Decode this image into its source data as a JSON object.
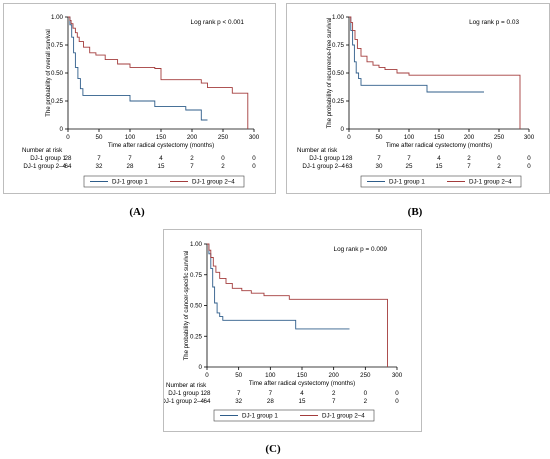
{
  "captions": {
    "a": "(A)",
    "b": "(B)",
    "c": "(C)"
  },
  "colors": {
    "group1": "#2f5d8a",
    "group2_4": "#a33c3c",
    "axis": "#000000",
    "frame": "#bdbdbd"
  },
  "chart_data": [
    {
      "type": "line",
      "subtype": "kaplan-meier",
      "panel": "A",
      "ylabel": "The probability of overall survival",
      "xlabel": "Time after radical cystectomy (months)",
      "annotation": "Log rank p < 0.001",
      "xlim": [
        0,
        300
      ],
      "ylim": [
        0,
        1
      ],
      "xticks": [
        "0",
        "50",
        "100",
        "150",
        "200",
        "250",
        "300"
      ],
      "yticks": [
        "0",
        "0.25",
        "0.50",
        "0.75",
        "1.00"
      ],
      "legend": {
        "placement": "bottom",
        "entries": [
          "DJ-1 group 1",
          "DJ-1 group 2–4"
        ]
      },
      "series": [
        {
          "name": "DJ-1 group 1",
          "color": "#2f5d8a",
          "x": [
            0,
            3,
            6,
            9,
            12,
            16,
            20,
            24,
            30,
            100,
            140,
            190,
            215,
            225
          ],
          "y": [
            1.0,
            0.93,
            0.82,
            0.68,
            0.55,
            0.45,
            0.36,
            0.3,
            0.3,
            0.25,
            0.2,
            0.17,
            0.08,
            0.08
          ]
        },
        {
          "name": "DJ-1 group 2–4",
          "color": "#a33c3c",
          "x": [
            0,
            3,
            5,
            8,
            12,
            15,
            18,
            25,
            35,
            45,
            60,
            80,
            100,
            125,
            140,
            150,
            215,
            225,
            245,
            265,
            290,
            290
          ],
          "y": [
            1.0,
            0.97,
            0.94,
            0.9,
            0.86,
            0.82,
            0.78,
            0.73,
            0.68,
            0.66,
            0.62,
            0.58,
            0.55,
            0.55,
            0.54,
            0.44,
            0.41,
            0.37,
            0.37,
            0.32,
            0.32,
            0.0
          ]
        }
      ],
      "risk_table": {
        "title": "Number at risk",
        "times": [
          0,
          50,
          100,
          150,
          200,
          250,
          300
        ],
        "rows": [
          {
            "label": "DJ-1 group 1",
            "values": [
              "28",
              "7",
              "7",
              "4",
              "2",
              "0",
              "0"
            ]
          },
          {
            "label": "DJ-1 group 2–4",
            "values": [
              "64",
              "32",
              "28",
              "15",
              "7",
              "2",
              "0"
            ]
          }
        ]
      }
    },
    {
      "type": "line",
      "subtype": "kaplan-meier",
      "panel": "B",
      "ylabel": "The probability of recurrence-free survival",
      "xlabel": "Time after radical cystectomy (months)",
      "annotation": "Log rank p = 0.03",
      "xlim": [
        0,
        300
      ],
      "ylim": [
        0,
        1
      ],
      "xticks": [
        "0",
        "50",
        "100",
        "150",
        "200",
        "250",
        "300"
      ],
      "yticks": [
        "0",
        "0.25",
        "0.50",
        "0.75",
        "1.00"
      ],
      "legend": {
        "placement": "bottom",
        "entries": [
          "DJ-1 group 1",
          "DJ-1 group 2–4"
        ]
      },
      "series": [
        {
          "name": "DJ-1 group 1",
          "color": "#2f5d8a",
          "x": [
            0,
            3,
            6,
            9,
            12,
            16,
            20,
            130,
            225
          ],
          "y": [
            1.0,
            0.88,
            0.75,
            0.6,
            0.5,
            0.45,
            0.39,
            0.33,
            0.33
          ]
        },
        {
          "name": "DJ-1 group 2–4",
          "color": "#a33c3c",
          "x": [
            0,
            3,
            6,
            10,
            14,
            20,
            30,
            40,
            50,
            60,
            80,
            100,
            285,
            285
          ],
          "y": [
            1.0,
            0.95,
            0.88,
            0.8,
            0.72,
            0.65,
            0.6,
            0.57,
            0.55,
            0.53,
            0.5,
            0.48,
            0.48,
            0.0
          ]
        }
      ],
      "risk_table": {
        "title": "Number at risk",
        "times": [
          0,
          50,
          100,
          150,
          200,
          250,
          300
        ],
        "rows": [
          {
            "label": "DJ-1 group 1",
            "values": [
              "28",
              "7",
              "7",
              "4",
              "2",
              "0",
              "0"
            ]
          },
          {
            "label": "DJ-1 group 2–4",
            "values": [
              "63",
              "30",
              "25",
              "15",
              "7",
              "2",
              "0"
            ]
          }
        ]
      }
    },
    {
      "type": "line",
      "subtype": "kaplan-meier",
      "panel": "C",
      "ylabel": "The probability of cancer-specific survival",
      "xlabel": "Time after radical cystectomy (months)",
      "annotation": "Log rank p = 0.009",
      "xlim": [
        0,
        300
      ],
      "ylim": [
        0,
        1
      ],
      "xticks": [
        "0",
        "50",
        "100",
        "150",
        "200",
        "250",
        "300"
      ],
      "yticks": [
        "0",
        "0.25",
        "0.50",
        "0.75",
        "1.00"
      ],
      "legend": {
        "placement": "bottom",
        "entries": [
          "DJ-1 group 1",
          "DJ-1 group 2–4"
        ]
      },
      "series": [
        {
          "name": "DJ-1 group 1",
          "color": "#2f5d8a",
          "x": [
            0,
            3,
            6,
            9,
            12,
            16,
            20,
            25,
            140,
            225
          ],
          "y": [
            1.0,
            0.92,
            0.8,
            0.65,
            0.52,
            0.44,
            0.41,
            0.38,
            0.31,
            0.31
          ]
        },
        {
          "name": "DJ-1 group 2–4",
          "color": "#a33c3c",
          "x": [
            0,
            3,
            6,
            10,
            14,
            20,
            30,
            40,
            55,
            70,
            90,
            130,
            285,
            285
          ],
          "y": [
            1.0,
            0.95,
            0.89,
            0.82,
            0.77,
            0.72,
            0.68,
            0.64,
            0.62,
            0.6,
            0.58,
            0.55,
            0.55,
            0.0
          ]
        }
      ],
      "risk_table": {
        "title": "Number at risk",
        "times": [
          0,
          50,
          100,
          150,
          200,
          250,
          300
        ],
        "rows": [
          {
            "label": "DJ-1 group 1",
            "values": [
              "28",
              "7",
              "7",
              "4",
              "2",
              "0",
              "0"
            ]
          },
          {
            "label": "DJ-1 group 2–4",
            "values": [
              "64",
              "32",
              "28",
              "15",
              "7",
              "2",
              "0"
            ]
          }
        ]
      }
    }
  ]
}
